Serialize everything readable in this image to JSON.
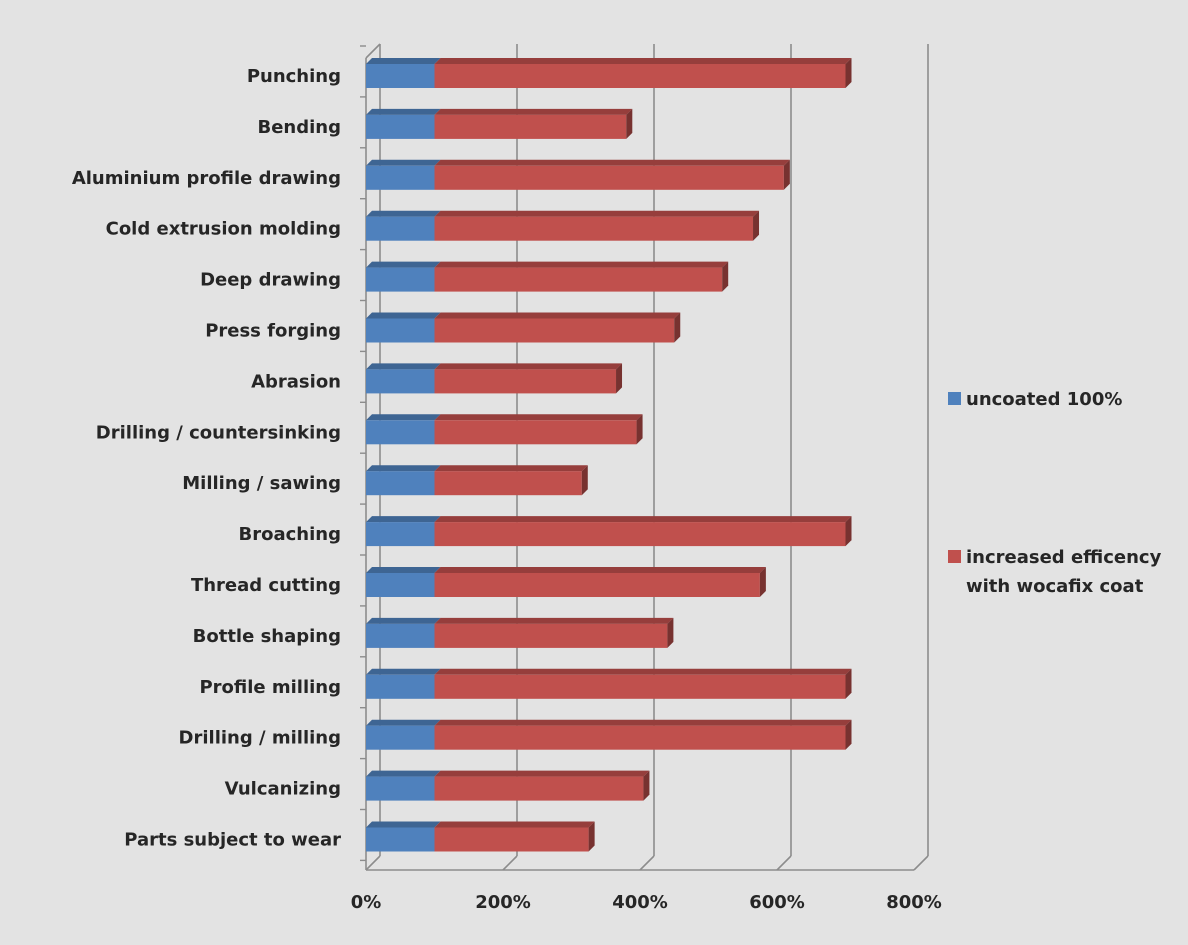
{
  "chart_data": {
    "type": "bar",
    "orientation": "horizontal",
    "stacked": true,
    "style": "3d",
    "categories": [
      "Punching",
      "Bending",
      "Aluminium profile drawing",
      "Cold extrusion molding",
      "Deep drawing",
      "Press forging",
      "Abrasion",
      "Drilling / countersinking",
      "Milling / sawing",
      "Broaching",
      "Thread cutting",
      "Bottle shaping",
      "Profile milling",
      "Drilling / milling",
      "Vulcanizing",
      "Parts subject to wear"
    ],
    "series": [
      {
        "name": "uncoated 100%",
        "color": "#4f81bd",
        "values": [
          100,
          100,
          100,
          100,
          100,
          100,
          100,
          100,
          100,
          100,
          100,
          100,
          100,
          100,
          100,
          100
        ]
      },
      {
        "name_lines": [
          "increased efficency",
          "with wocafix coat"
        ],
        "color": "#c0504d",
        "values": [
          600,
          280,
          510,
          465,
          420,
          350,
          265,
          295,
          215,
          600,
          475,
          340,
          600,
          600,
          305,
          225
        ]
      }
    ],
    "xaxis": {
      "min": 0,
      "max": 800,
      "ticks": [
        0,
        200,
        400,
        600,
        800
      ],
      "tick_labels": [
        "0%",
        "200%",
        "400%",
        "600%",
        "800%"
      ]
    },
    "title": "",
    "xlabel": "",
    "ylabel": "",
    "grid": true,
    "legend_position": "right"
  }
}
